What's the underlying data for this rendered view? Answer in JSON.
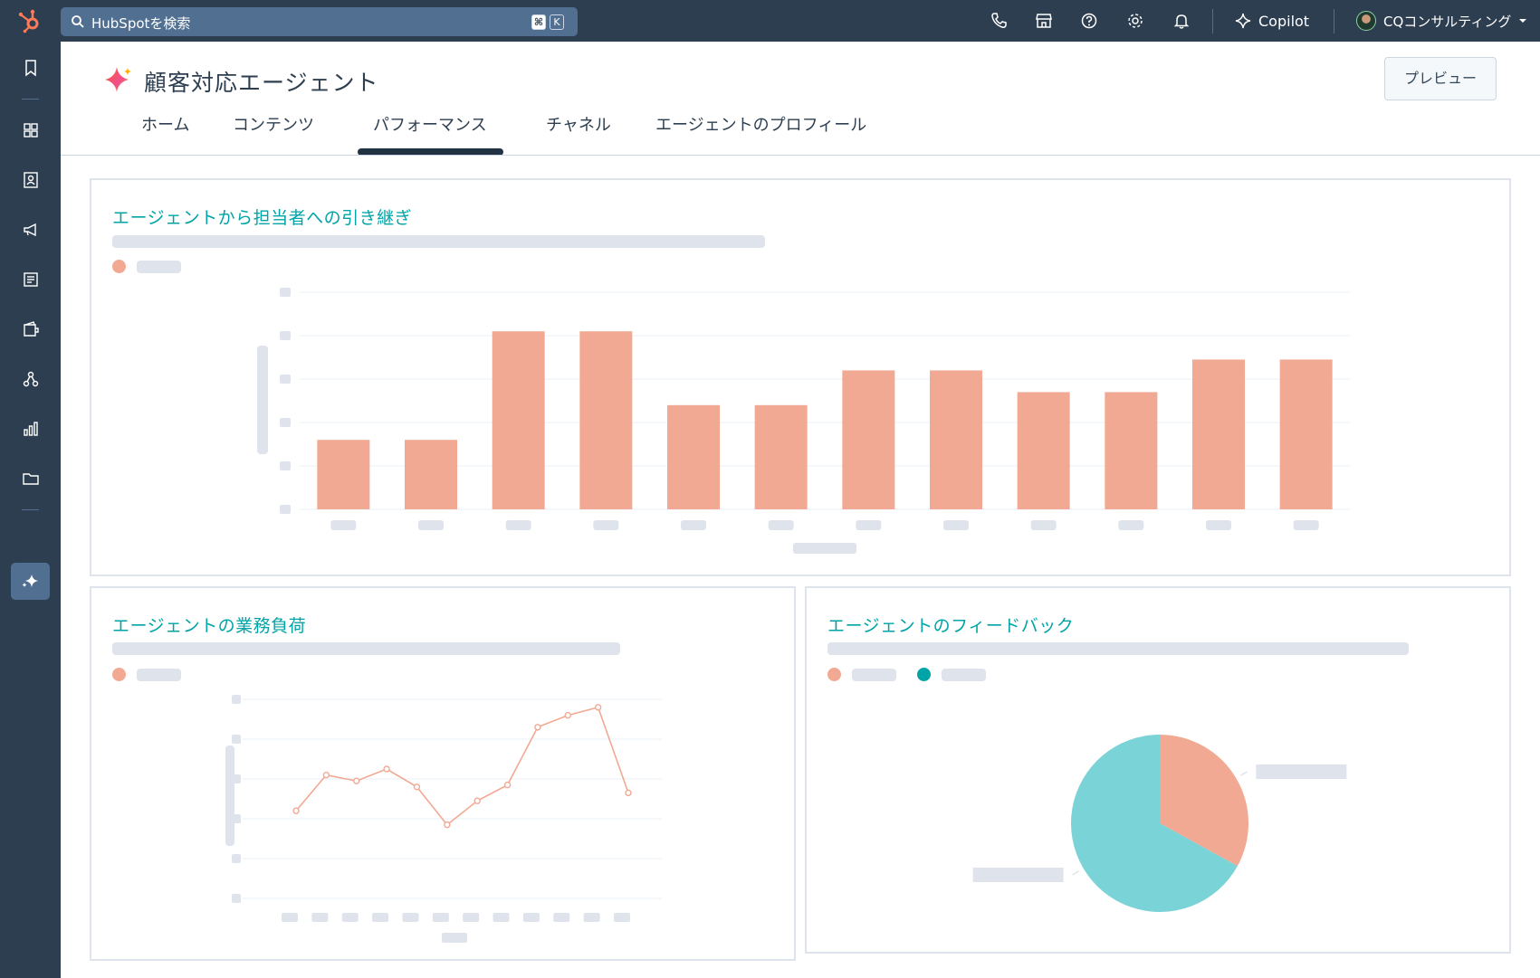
{
  "topbar": {
    "search_placeholder": "HubSpotを検索",
    "shortcut_key_1": "⌘",
    "shortcut_key_2": "K",
    "copilot_label": "Copilot",
    "account_name": "CQコンサルティング",
    "icons": [
      "phone-icon",
      "marketplace-icon",
      "help-icon",
      "settings-icon",
      "notifications-icon"
    ]
  },
  "sidebar": {
    "items": [
      "bookmark-icon",
      "workspaces-icon",
      "contacts-icon",
      "marketing-icon",
      "content-icon",
      "commerce-icon",
      "automation-icon",
      "reporting-icon",
      "library-icon",
      "breeze-agents-icon"
    ],
    "active": "breeze-agents-icon"
  },
  "header": {
    "title": "顧客対応エージェント",
    "preview_label": "プレビュー"
  },
  "tabs": {
    "items": [
      "ホーム",
      "コンテンツ",
      "パフォーマンス",
      "チャネル",
      "エージェントのプロフィール"
    ],
    "active_index": 2
  },
  "cards": {
    "handoff": {
      "title": "エージェントから担当者への引き継ぎ"
    },
    "workload": {
      "title": "エージェントの業務負荷"
    },
    "feedback": {
      "title": "エージェントのフィードバック"
    }
  },
  "colors": {
    "accent_teal": "#00a4a6",
    "bar_salmon": "#f2a993",
    "pie_teal": "#7ad3d7",
    "nav_dark": "#2d3e50",
    "placeholder": "#dfe3eb"
  },
  "chart_data": [
    {
      "type": "bar",
      "values": [
        1.6,
        1.6,
        4.1,
        4.1,
        2.4,
        2.4,
        3.2,
        3.2,
        2.7,
        2.7,
        3.45,
        3.45
      ],
      "ylim": [
        0,
        5
      ],
      "grid": true,
      "labels_redacted": true
    },
    {
      "type": "line",
      "values": [
        2.2,
        3.1,
        2.95,
        3.25,
        2.8,
        1.85,
        2.45,
        2.85,
        4.3,
        4.6,
        4.8,
        2.65
      ],
      "ylim": [
        0,
        5
      ],
      "grid": true,
      "labels_redacted": true
    },
    {
      "type": "pie",
      "values": [
        33,
        67
      ],
      "labels_redacted": true
    }
  ]
}
